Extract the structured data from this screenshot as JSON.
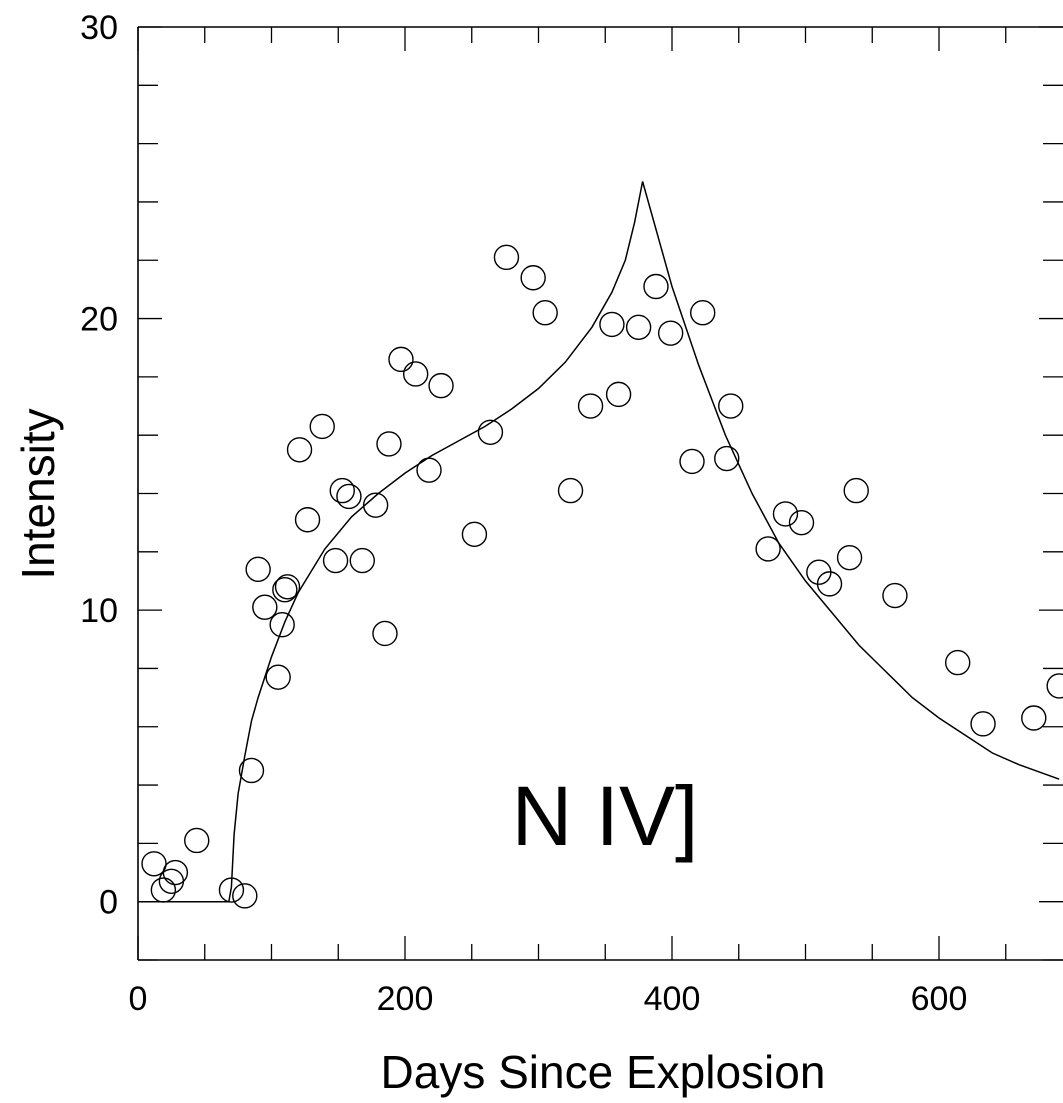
{
  "chart_data": {
    "type": "scatter",
    "xlabel": "Days Since Explosion",
    "ylabel": "Intensity",
    "annotation": "N IV]",
    "xlim": [
      0,
      690
    ],
    "ylim": [
      -2,
      30
    ],
    "x_ticks": [
      0,
      200,
      400,
      600
    ],
    "x_tick_labels": [
      "0",
      "200",
      "400",
      "600"
    ],
    "y_ticks": [
      0,
      10,
      20,
      30
    ],
    "y_tick_labels": [
      "0",
      "10",
      "20",
      "30"
    ],
    "grid": false,
    "legend": "none",
    "series": [
      {
        "type": "scatter",
        "marker": "open-circle",
        "points": [
          [
            12,
            1.3
          ],
          [
            19,
            0.4
          ],
          [
            25,
            0.7
          ],
          [
            28,
            1.0
          ],
          [
            44,
            2.1
          ],
          [
            70,
            0.4
          ],
          [
            80,
            0.2
          ],
          [
            85,
            4.5
          ],
          [
            90,
            11.4
          ],
          [
            95,
            10.1
          ],
          [
            105,
            7.7
          ],
          [
            108,
            9.5
          ],
          [
            110,
            10.7
          ],
          [
            112,
            10.8
          ],
          [
            121,
            15.5
          ],
          [
            127,
            13.1
          ],
          [
            138,
            16.3
          ],
          [
            148,
            11.7
          ],
          [
            153,
            14.1
          ],
          [
            158,
            13.9
          ],
          [
            168,
            11.7
          ],
          [
            178,
            13.6
          ],
          [
            185,
            9.2
          ],
          [
            188,
            15.7
          ],
          [
            197,
            18.6
          ],
          [
            208,
            18.1
          ],
          [
            218,
            14.8
          ],
          [
            227,
            17.7
          ],
          [
            252,
            12.6
          ],
          [
            264,
            16.1
          ],
          [
            276,
            22.1
          ],
          [
            296,
            21.4
          ],
          [
            305,
            20.2
          ],
          [
            324,
            14.1
          ],
          [
            339,
            17.0
          ],
          [
            355,
            19.8
          ],
          [
            360,
            17.4
          ],
          [
            375,
            19.7
          ],
          [
            388,
            21.1
          ],
          [
            399,
            19.5
          ],
          [
            415,
            15.1
          ],
          [
            423,
            20.2
          ],
          [
            441,
            15.2
          ],
          [
            444,
            17.0
          ],
          [
            472,
            12.1
          ],
          [
            485,
            13.3
          ],
          [
            497,
            13.0
          ],
          [
            510,
            11.3
          ],
          [
            518,
            10.9
          ],
          [
            533,
            11.8
          ],
          [
            538,
            14.1
          ],
          [
            567,
            10.5
          ],
          [
            614,
            8.2
          ],
          [
            633,
            6.1
          ],
          [
            671,
            6.3
          ],
          [
            690,
            7.4
          ]
        ]
      },
      {
        "type": "line",
        "style": "solid",
        "points": [
          [
            0,
            0
          ],
          [
            68,
            0
          ],
          [
            70,
            0.5
          ],
          [
            72,
            2.3
          ],
          [
            75,
            3.7
          ],
          [
            80,
            5.0
          ],
          [
            85,
            6.2
          ],
          [
            90,
            7.0
          ],
          [
            100,
            8.4
          ],
          [
            110,
            9.6
          ],
          [
            120,
            10.6
          ],
          [
            140,
            12.1
          ],
          [
            160,
            13.2
          ],
          [
            180,
            14.0
          ],
          [
            200,
            14.7
          ],
          [
            220,
            15.3
          ],
          [
            240,
            15.8
          ],
          [
            260,
            16.3
          ],
          [
            280,
            16.9
          ],
          [
            300,
            17.6
          ],
          [
            320,
            18.5
          ],
          [
            340,
            19.7
          ],
          [
            355,
            20.9
          ],
          [
            365,
            22.0
          ],
          [
            372,
            23.3
          ],
          [
            378,
            24.7
          ],
          [
            400,
            21.1
          ],
          [
            420,
            18.4
          ],
          [
            440,
            16.0
          ],
          [
            460,
            14.0
          ],
          [
            480,
            12.3
          ],
          [
            500,
            11.0
          ],
          [
            520,
            9.9
          ],
          [
            540,
            8.8
          ],
          [
            560,
            7.9
          ],
          [
            580,
            7.0
          ],
          [
            600,
            6.3
          ],
          [
            620,
            5.7
          ],
          [
            640,
            5.1
          ],
          [
            660,
            4.7
          ],
          [
            690,
            4.2
          ]
        ]
      }
    ]
  }
}
